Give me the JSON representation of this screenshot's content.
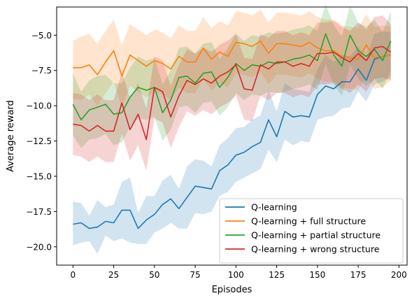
{
  "chart_data": {
    "type": "line",
    "title": "",
    "xlabel": "Episodes",
    "ylabel": "Average reward",
    "xlim": [
      -10,
      205
    ],
    "ylim": [
      -21.3,
      -3.0
    ],
    "xticks": [
      0,
      25,
      50,
      75,
      100,
      125,
      150,
      175,
      200
    ],
    "xtick_labels": [
      "0",
      "25",
      "50",
      "75",
      "100",
      "125",
      "150",
      "175",
      "200"
    ],
    "yticks": [
      -20.0,
      -17.5,
      -15.0,
      -12.5,
      -10.0,
      -7.5,
      -5.0
    ],
    "ytick_labels": [
      "−20.0",
      "−17.5",
      "−15.0",
      "−12.5",
      "−10.0",
      "−7.5",
      "−5.0"
    ],
    "grid": false,
    "legend_position": "bottom-right",
    "x": [
      0,
      5,
      10,
      15,
      20,
      25,
      30,
      35,
      40,
      45,
      50,
      55,
      60,
      65,
      70,
      75,
      80,
      85,
      90,
      95,
      100,
      105,
      110,
      115,
      120,
      125,
      130,
      135,
      140,
      145,
      150,
      155,
      160,
      165,
      170,
      175,
      180,
      185,
      190,
      195
    ],
    "series": [
      {
        "name": "Q-learning",
        "color": "#1f77b4",
        "values": [
          -18.4,
          -18.3,
          -18.7,
          -18.6,
          -18.2,
          -18.3,
          -17.4,
          -17.4,
          -18.7,
          -18.1,
          -17.7,
          -17.0,
          -16.6,
          -17.3,
          -16.5,
          -15.7,
          -15.8,
          -15.9,
          -14.6,
          -14.2,
          -13.5,
          -13.3,
          -12.9,
          -12.6,
          -11.0,
          -12.2,
          -10.4,
          -10.8,
          -10.7,
          -10.8,
          -9.2,
          -8.6,
          -8.8,
          -8.3,
          -8.3,
          -7.4,
          -8.2,
          -6.7,
          -6.5,
          -6.4
        ],
        "lower": [
          -19.9,
          -19.7,
          -19.6,
          -20.5,
          -19.2,
          -19.6,
          -19.4,
          -19.7,
          -19.8,
          -19.8,
          -19.0,
          -18.7,
          -18.3,
          -18.7,
          -18.7,
          -17.6,
          -17.7,
          -17.5,
          -16.4,
          -16.1,
          -15.4,
          -15.1,
          -14.8,
          -14.5,
          -13.1,
          -14.0,
          -12.4,
          -12.8,
          -12.5,
          -12.6,
          -11.0,
          -10.8,
          -10.7,
          -10.2,
          -10.1,
          -9.0,
          -9.7,
          -8.5,
          -8.3,
          -8.0
        ],
        "upper": [
          -16.8,
          -16.9,
          -17.8,
          -16.7,
          -17.2,
          -17.0,
          -15.4,
          -15.1,
          -17.6,
          -16.4,
          -16.4,
          -15.3,
          -14.9,
          -15.9,
          -14.3,
          -13.8,
          -13.9,
          -14.3,
          -12.8,
          -12.3,
          -11.6,
          -11.5,
          -11.0,
          -10.7,
          -8.9,
          -10.4,
          -8.4,
          -8.8,
          -8.9,
          -9.0,
          -7.4,
          -6.4,
          -6.9,
          -6.4,
          -6.5,
          -5.8,
          -6.7,
          -4.9,
          -4.7,
          -4.8
        ]
      },
      {
        "name": "Q-learning + full structure",
        "color": "#ff7f0e",
        "values": [
          -7.3,
          -7.3,
          -7.1,
          -7.8,
          -6.9,
          -6.1,
          -7.9,
          -6.4,
          -6.8,
          -7.2,
          -6.8,
          -7.0,
          -7.4,
          -6.5,
          -6.9,
          -6.9,
          -5.9,
          -6.7,
          -6.2,
          -6.5,
          -5.5,
          -5.6,
          -5.8,
          -5.4,
          -6.3,
          -5.6,
          -5.6,
          -5.7,
          -5.8,
          -5.5,
          -5.9,
          -6.1,
          -6.1,
          -6.5,
          -6.6,
          -6.7,
          -5.7,
          -6.6,
          -6.5,
          -6.4
        ],
        "lower": [
          -9.5,
          -9.6,
          -9.2,
          -10.0,
          -9.1,
          -8.3,
          -10.1,
          -8.6,
          -9.0,
          -9.4,
          -9.0,
          -9.2,
          -9.6,
          -8.7,
          -9.1,
          -9.1,
          -8.1,
          -8.9,
          -8.4,
          -8.7,
          -7.7,
          -7.8,
          -8.0,
          -7.6,
          -8.5,
          -7.8,
          -7.8,
          -7.9,
          -8.0,
          -7.7,
          -8.1,
          -8.3,
          -8.3,
          -8.7,
          -8.8,
          -8.9,
          -7.9,
          -8.8,
          -8.7,
          -8.2
        ],
        "upper": [
          -5.4,
          -5.1,
          -4.9,
          -5.6,
          -4.7,
          -3.9,
          -5.7,
          -4.2,
          -4.6,
          -5.0,
          -4.6,
          -4.8,
          -5.2,
          -4.3,
          -4.7,
          -4.7,
          -3.7,
          -4.5,
          -4.0,
          -4.3,
          -3.3,
          -3.4,
          -3.6,
          -3.2,
          -4.1,
          -3.4,
          -3.4,
          -3.5,
          -3.6,
          -3.3,
          -3.7,
          -3.9,
          -3.9,
          -4.3,
          -4.4,
          -4.5,
          -3.5,
          -4.4,
          -4.3,
          -4.4
        ]
      },
      {
        "name": "Q-learning + partial structure",
        "color": "#2ca02c",
        "values": [
          -9.9,
          -11.0,
          -10.3,
          -10.1,
          -9.9,
          -10.6,
          -10.5,
          -9.4,
          -8.7,
          -8.9,
          -8.7,
          -10.5,
          -9.6,
          -8.0,
          -7.9,
          -8.4,
          -7.7,
          -7.6,
          -8.7,
          -8.0,
          -7.0,
          -7.5,
          -7.1,
          -7.2,
          -6.9,
          -7.0,
          -6.9,
          -6.7,
          -6.6,
          -6.4,
          -6.8,
          -4.9,
          -6.4,
          -7.2,
          -5.0,
          -6.1,
          -6.5,
          -6.0,
          -6.8,
          -5.4
        ],
        "lower": [
          -12.1,
          -13.0,
          -12.4,
          -12.3,
          -12.0,
          -12.8,
          -12.6,
          -11.5,
          -10.9,
          -11.0,
          -10.8,
          -12.5,
          -11.7,
          -10.1,
          -10.0,
          -10.5,
          -9.8,
          -9.7,
          -10.7,
          -10.1,
          -9.1,
          -9.6,
          -9.2,
          -9.3,
          -9.0,
          -9.1,
          -9.0,
          -8.8,
          -8.7,
          -8.5,
          -8.9,
          -7.0,
          -8.5,
          -9.3,
          -7.1,
          -8.1,
          -8.6,
          -8.1,
          -8.8,
          -7.5
        ],
        "upper": [
          -7.7,
          -9.0,
          -8.2,
          -7.9,
          -7.8,
          -8.4,
          -8.4,
          -7.3,
          -6.5,
          -6.8,
          -6.6,
          -8.5,
          -7.5,
          -5.9,
          -5.8,
          -6.3,
          -5.6,
          -5.5,
          -6.7,
          -5.9,
          -4.9,
          -5.4,
          -5.0,
          -5.1,
          -4.8,
          -4.9,
          -4.8,
          -4.6,
          -4.5,
          -4.3,
          -4.7,
          -2.8,
          -4.3,
          -5.1,
          -2.9,
          -4.1,
          -4.4,
          -3.9,
          -4.8,
          -3.3
        ]
      },
      {
        "name": "Q-learning + wrong structure",
        "color": "#d62728",
        "values": [
          -11.3,
          -11.4,
          -11.8,
          -11.4,
          -11.8,
          -11.8,
          -9.8,
          -11.7,
          -10.6,
          -12.4,
          -8.7,
          -9.0,
          -10.8,
          -9.3,
          -8.2,
          -8.5,
          -8.1,
          -8.4,
          -7.9,
          -7.6,
          -7.1,
          -8.8,
          -8.9,
          -7.1,
          -7.4,
          -6.9,
          -6.9,
          -7.2,
          -7.0,
          -7.2,
          -6.3,
          -6.3,
          -6.2,
          -6.6,
          -6.9,
          -6.3,
          -6.8,
          -5.9,
          -5.8,
          -6.2
        ],
        "lower": [
          -13.5,
          -13.6,
          -14.0,
          -13.6,
          -14.0,
          -14.0,
          -12.0,
          -13.9,
          -12.8,
          -14.6,
          -10.9,
          -11.2,
          -13.0,
          -11.5,
          -10.4,
          -10.7,
          -10.3,
          -10.6,
          -10.1,
          -9.8,
          -9.3,
          -11.0,
          -11.1,
          -9.3,
          -9.6,
          -9.1,
          -9.1,
          -9.4,
          -9.2,
          -9.4,
          -8.5,
          -8.5,
          -8.4,
          -8.8,
          -9.1,
          -8.5,
          -9.0,
          -8.1,
          -8.0,
          -8.2
        ],
        "upper": [
          -9.1,
          -9.2,
          -9.6,
          -9.2,
          -9.6,
          -9.6,
          -7.6,
          -9.5,
          -8.4,
          -10.2,
          -6.5,
          -6.8,
          -8.6,
          -7.1,
          -6.0,
          -6.3,
          -5.9,
          -6.2,
          -5.7,
          -5.4,
          -4.9,
          -6.6,
          -6.7,
          -4.9,
          -5.2,
          -4.7,
          -4.7,
          -5.0,
          -4.8,
          -5.0,
          -4.1,
          -4.1,
          -4.0,
          -4.4,
          -4.7,
          -4.1,
          -4.6,
          -3.7,
          -3.6,
          -4.2
        ]
      }
    ]
  }
}
